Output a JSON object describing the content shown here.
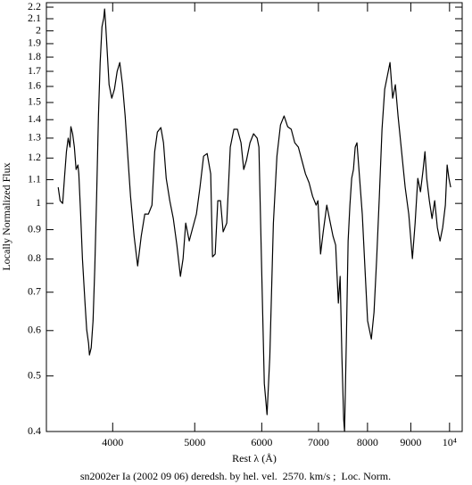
{
  "chart_data": {
    "type": "line",
    "title": "sn2002er Ia (2002 09 06) deredsh. by hel. vel.  2570. km/s ;  Loc. Norm.",
    "x_label": "Rest λ (Å)",
    "y_label": "Locally Normalized Flux",
    "xlog": true,
    "ylog": true,
    "xlim": [
      3340,
      10350
    ],
    "ylim": [
      0.4,
      2.24
    ],
    "xticks": [
      4000,
      5000,
      6000,
      7000,
      8000,
      9000,
      {
        "value": 10000,
        "label": "10⁴"
      }
    ],
    "yticks": [
      0.4,
      0.5,
      0.6,
      0.7,
      0.8,
      0.9,
      1,
      1.1,
      1.2,
      1.3,
      1.4,
      1.5,
      1.6,
      1.7,
      1.8,
      1.9,
      2,
      2.1,
      2.2
    ],
    "x": [
      3449,
      3467,
      3491,
      3508,
      3527,
      3544,
      3561,
      3570,
      3587,
      3604,
      3621,
      3639,
      3648,
      3666,
      3684,
      3710,
      3727,
      3746,
      3755,
      3773,
      3792,
      3810,
      3829,
      3848,
      3866,
      3885,
      3904,
      3913,
      3923,
      3942,
      3961,
      3990,
      4019,
      4049,
      4078,
      4108,
      4138,
      4168,
      4199,
      4240,
      4281,
      4323,
      4365,
      4408,
      4451,
      4484,
      4517,
      4560,
      4593,
      4627,
      4672,
      4717,
      4763,
      4809,
      4844,
      4879,
      4926,
      4974,
      5023,
      5072,
      5122,
      5172,
      5222,
      5248,
      5286,
      5324,
      5363,
      5402,
      5455,
      5508,
      5562,
      5616,
      5671,
      5713,
      5755,
      5811,
      5868,
      5925,
      5954,
      5998,
      6042,
      6087,
      6133,
      6193,
      6253,
      6314,
      6376,
      6438,
      6501,
      6564,
      6628,
      6693,
      6758,
      6824,
      6890,
      6957,
      6991,
      7041,
      7092,
      7161,
      7231,
      7283,
      7336,
      7390,
      7426,
      7462,
      7498,
      7516,
      7553,
      7589,
      7626,
      7663,
      7700,
      7737,
      7774,
      7830,
      7887,
      7944,
      8002,
      8084,
      8143,
      8202,
      8262,
      8322,
      8383,
      8444,
      8505,
      8567,
      8630,
      8693,
      8778,
      8863,
      8950,
      9039,
      9106,
      9173,
      9240,
      9307,
      9353,
      9398,
      9466,
      9535,
      9604,
      9674,
      9745,
      9816,
      9887,
      9935,
      9983,
      10031
    ],
    "series": [
      {
        "color": "#000000",
        "values": [
          1.067,
          1.011,
          1.0,
          1.106,
          1.231,
          1.3,
          1.254,
          1.361,
          1.323,
          1.254,
          1.146,
          1.167,
          1.126,
          0.958,
          0.801,
          0.67,
          0.602,
          0.57,
          0.544,
          0.56,
          0.624,
          0.773,
          1.029,
          1.421,
          1.761,
          2.033,
          2.107,
          2.184,
          2.07,
          1.826,
          1.611,
          1.526,
          1.582,
          1.7,
          1.761,
          1.611,
          1.421,
          1.209,
          1.029,
          0.877,
          0.778,
          0.877,
          0.958,
          0.958,
          0.993,
          1.231,
          1.332,
          1.356,
          1.276,
          1.106,
          1.011,
          0.941,
          0.846,
          0.746,
          0.801,
          0.924,
          0.86,
          0.908,
          0.958,
          1.067,
          1.209,
          1.222,
          1.126,
          0.807,
          0.816,
          1.011,
          1.011,
          0.892,
          0.924,
          1.254,
          1.347,
          1.347,
          1.276,
          1.146,
          1.188,
          1.276,
          1.323,
          1.3,
          1.254,
          0.773,
          0.485,
          0.428,
          0.54,
          0.924,
          1.209,
          1.371,
          1.421,
          1.361,
          1.347,
          1.276,
          1.254,
          1.188,
          1.126,
          1.087,
          1.029,
          0.993,
          1.011,
          0.816,
          0.892,
          0.993,
          0.924,
          0.877,
          0.846,
          0.67,
          0.746,
          0.54,
          0.42,
          0.4,
          0.58,
          0.86,
          0.993,
          1.106,
          1.146,
          1.254,
          1.276,
          1.106,
          0.958,
          0.773,
          0.624,
          0.58,
          0.646,
          0.801,
          1.029,
          1.347,
          1.582,
          1.669,
          1.761,
          1.526,
          1.611,
          1.421,
          1.231,
          1.067,
          0.958,
          0.801,
          0.924,
          1.106,
          1.048,
          1.146,
          1.231,
          1.106,
          1.011,
          0.941,
          1.011,
          0.908,
          0.86,
          0.908,
          0.993,
          1.167,
          1.106,
          1.067
        ]
      }
    ]
  }
}
